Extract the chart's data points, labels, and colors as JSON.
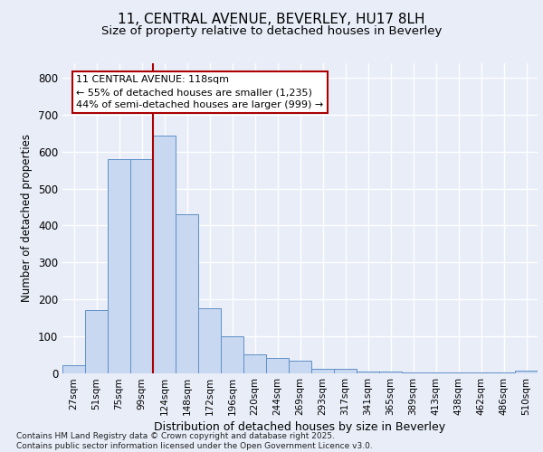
{
  "title_line1": "11, CENTRAL AVENUE, BEVERLEY, HU17 8LH",
  "title_line2": "Size of property relative to detached houses in Beverley",
  "xlabel": "Distribution of detached houses by size in Beverley",
  "ylabel": "Number of detached properties",
  "categories": [
    "27sqm",
    "51sqm",
    "75sqm",
    "99sqm",
    "124sqm",
    "148sqm",
    "172sqm",
    "196sqm",
    "220sqm",
    "244sqm",
    "269sqm",
    "293sqm",
    "317sqm",
    "341sqm",
    "365sqm",
    "389sqm",
    "413sqm",
    "438sqm",
    "462sqm",
    "486sqm",
    "510sqm"
  ],
  "bar_heights": [
    20,
    170,
    580,
    580,
    645,
    430,
    175,
    100,
    50,
    40,
    32,
    12,
    12,
    4,
    3,
    2,
    2,
    1,
    1,
    1,
    5
  ],
  "bar_color": "#c8d8f0",
  "bar_edge_color": "#6090c8",
  "vline_color": "#aa0000",
  "vline_x": 3.5,
  "annotation_line1": "11 CENTRAL AVENUE: 118sqm",
  "annotation_line2": "← 55% of detached houses are smaller (1,235)",
  "annotation_line3": "44% of semi-detached houses are larger (999) →",
  "ylim_max": 840,
  "yticks": [
    0,
    100,
    200,
    300,
    400,
    500,
    600,
    700,
    800
  ],
  "background_color": "#e8edf8",
  "grid_color": "#ffffff",
  "footer_text": "Contains HM Land Registry data © Crown copyright and database right 2025.\nContains public sector information licensed under the Open Government Licence v3.0."
}
